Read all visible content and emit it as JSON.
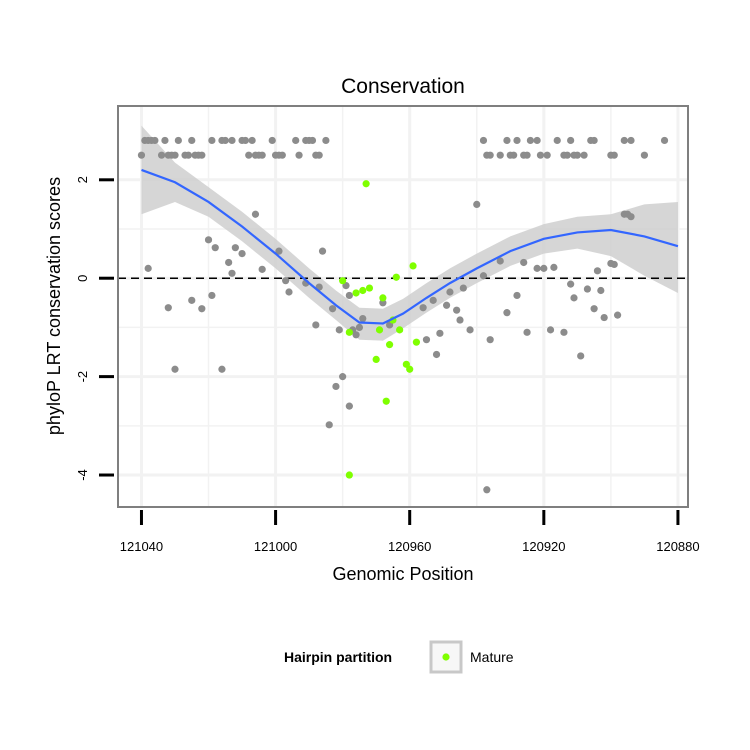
{
  "chart_data": {
    "type": "scatter",
    "title": "Conservation",
    "xlabel": "Genomic Position",
    "ylabel": "phyloP LRT conservation scores",
    "x_reversed": true,
    "xlim": [
      121047,
      120877
    ],
    "ylim": [
      -4.65,
      3.5
    ],
    "x_ticks": [
      121040,
      121000,
      120960,
      120920,
      120880
    ],
    "y_ticks": [
      -4,
      -2,
      0,
      2
    ],
    "reference_line": {
      "y": 0,
      "style": "dashed",
      "color": "#000000"
    },
    "grid": true,
    "legend": {
      "title": "Hairpin partition",
      "position": "bottom",
      "entries": [
        {
          "label": "Mature",
          "color": "#7fff00"
        }
      ]
    },
    "colors": {
      "default_points": "#8c8c8c",
      "mature_points": "#7fff00",
      "smooth_line": "#3366ff",
      "confidence_band": "#cccccc",
      "grid": "#f2f2f2",
      "panel_border": "#7f7f7f"
    },
    "series": [
      {
        "name": "",
        "color": "#8c8c8c",
        "points": [
          [
            121040,
            2.5
          ],
          [
            121039,
            2.8
          ],
          [
            121038,
            2.8
          ],
          [
            121037,
            2.8
          ],
          [
            121036,
            2.8
          ],
          [
            121034,
            2.5
          ],
          [
            121033,
            2.8
          ],
          [
            121032,
            2.5
          ],
          [
            121031,
            2.5
          ],
          [
            121030,
            2.5
          ],
          [
            121029,
            2.8
          ],
          [
            121027,
            2.5
          ],
          [
            121026,
            2.5
          ],
          [
            121025,
            2.8
          ],
          [
            121024,
            2.5
          ],
          [
            121023,
            2.5
          ],
          [
            121022,
            2.5
          ],
          [
            121019,
            2.8
          ],
          [
            121016,
            2.8
          ],
          [
            121015,
            2.8
          ],
          [
            121013,
            2.8
          ],
          [
            121010,
            2.8
          ],
          [
            121009,
            2.8
          ],
          [
            121008,
            2.5
          ],
          [
            121007,
            2.8
          ],
          [
            121006,
            2.5
          ],
          [
            121005,
            2.5
          ],
          [
            121004,
            2.5
          ],
          [
            121001,
            2.8
          ],
          [
            121000,
            2.5
          ],
          [
            120999,
            2.5
          ],
          [
            120998,
            2.5
          ],
          [
            120994,
            2.8
          ],
          [
            120993,
            2.5
          ],
          [
            120991,
            2.8
          ],
          [
            120990,
            2.8
          ],
          [
            120989,
            2.8
          ],
          [
            120988,
            2.5
          ],
          [
            120987,
            2.5
          ],
          [
            120985,
            2.8
          ],
          [
            121038,
            0.2
          ],
          [
            121032,
            -0.6
          ],
          [
            121030,
            -1.85
          ],
          [
            121025,
            -0.45
          ],
          [
            121022,
            -0.62
          ],
          [
            121020,
            0.78
          ],
          [
            121019,
            -0.35
          ],
          [
            121018,
            0.62
          ],
          [
            121016,
            -1.85
          ],
          [
            121014,
            0.32
          ],
          [
            121013,
            0.1
          ],
          [
            121012,
            0.62
          ],
          [
            121010,
            0.5
          ],
          [
            121006,
            1.3
          ],
          [
            121004,
            0.18
          ],
          [
            120999,
            0.55
          ],
          [
            120997,
            -0.05
          ],
          [
            120996,
            -0.28
          ],
          [
            120991,
            -0.1
          ],
          [
            120988,
            -0.95
          ],
          [
            120987,
            -0.18
          ],
          [
            120986,
            0.55
          ],
          [
            120984,
            -2.98
          ],
          [
            120983,
            -0.62
          ],
          [
            120982,
            -2.2
          ],
          [
            120981,
            -1.05
          ],
          [
            120980,
            -2.0
          ],
          [
            120979,
            -0.15
          ],
          [
            120978,
            -0.35
          ],
          [
            120978,
            -2.6
          ],
          [
            120977,
            -1.05
          ],
          [
            120976,
            -1.15
          ],
          [
            120975,
            -1.0
          ],
          [
            120974,
            -0.82
          ],
          [
            120968,
            -0.5
          ],
          [
            120966,
            -0.95
          ],
          [
            120956,
            -0.6
          ],
          [
            120955,
            -1.25
          ],
          [
            120953,
            -0.45
          ],
          [
            120952,
            -1.55
          ],
          [
            120951,
            -1.12
          ],
          [
            120949,
            -0.55
          ],
          [
            120948,
            -0.28
          ],
          [
            120946,
            -0.65
          ],
          [
            120945,
            -0.85
          ],
          [
            120944,
            -0.2
          ],
          [
            120942,
            -1.05
          ],
          [
            120940,
            1.5
          ],
          [
            120938,
            0.05
          ],
          [
            120937,
            -4.3
          ],
          [
            120936,
            -1.25
          ],
          [
            120933,
            0.35
          ],
          [
            120931,
            -0.7
          ],
          [
            120928,
            -0.35
          ],
          [
            120926,
            0.32
          ],
          [
            120925,
            -1.1
          ],
          [
            120922,
            0.2
          ],
          [
            120920,
            0.2
          ],
          [
            120918,
            -1.05
          ],
          [
            120917,
            0.22
          ],
          [
            120914,
            -1.1
          ],
          [
            120912,
            -0.12
          ],
          [
            120911,
            -0.4
          ],
          [
            120909,
            -1.58
          ],
          [
            120907,
            -0.22
          ],
          [
            120905,
            -0.62
          ],
          [
            120904,
            0.15
          ],
          [
            120903,
            -0.25
          ],
          [
            120902,
            -0.8
          ],
          [
            120900,
            0.3
          ],
          [
            120899,
            0.28
          ],
          [
            120898,
            -0.75
          ],
          [
            120896,
            1.3
          ],
          [
            120895,
            1.3
          ],
          [
            120894,
            1.25
          ],
          [
            120938,
            2.8
          ],
          [
            120937,
            2.5
          ],
          [
            120936,
            2.5
          ],
          [
            120933,
            2.5
          ],
          [
            120931,
            2.8
          ],
          [
            120930,
            2.5
          ],
          [
            120929,
            2.5
          ],
          [
            120928,
            2.8
          ],
          [
            120926,
            2.5
          ],
          [
            120925,
            2.5
          ],
          [
            120924,
            2.8
          ],
          [
            120922,
            2.8
          ],
          [
            120921,
            2.5
          ],
          [
            120919,
            2.5
          ],
          [
            120916,
            2.8
          ],
          [
            120914,
            2.5
          ],
          [
            120913,
            2.5
          ],
          [
            120912,
            2.8
          ],
          [
            120911,
            2.5
          ],
          [
            120910,
            2.5
          ],
          [
            120908,
            2.5
          ],
          [
            120906,
            2.8
          ],
          [
            120905,
            2.8
          ],
          [
            120900,
            2.5
          ],
          [
            120899,
            2.5
          ],
          [
            120896,
            2.8
          ],
          [
            120894,
            2.8
          ],
          [
            120890,
            2.5
          ],
          [
            120884,
            2.8
          ]
        ]
      },
      {
        "name": "Mature",
        "color": "#7fff00",
        "points": [
          [
            120980,
            -0.05
          ],
          [
            120978,
            -1.1
          ],
          [
            120976,
            -0.3
          ],
          [
            120974,
            -0.25
          ],
          [
            120973,
            1.92
          ],
          [
            120972,
            -0.2
          ],
          [
            120970,
            -1.65
          ],
          [
            120969,
            -1.05
          ],
          [
            120968,
            -0.4
          ],
          [
            120967,
            -2.5
          ],
          [
            120966,
            -1.35
          ],
          [
            120965,
            -0.85
          ],
          [
            120964,
            0.02
          ],
          [
            120963,
            -1.05
          ],
          [
            120961,
            -1.75
          ],
          [
            120960,
            -1.85
          ],
          [
            120959,
            0.25
          ],
          [
            120958,
            -1.3
          ],
          [
            120978,
            -4.0
          ]
        ]
      },
      {
        "name": "",
        "type": "smooth",
        "color": "#3366ff",
        "x": [
          121040,
          121030,
          121020,
          121010,
          121000,
          120990,
          120982,
          120975,
          120968,
          120962,
          120955,
          120948,
          120940,
          120930,
          120920,
          120910,
          120900,
          120890,
          120880
        ],
        "y": [
          2.2,
          1.95,
          1.55,
          1.05,
          0.5,
          -0.1,
          -0.55,
          -0.9,
          -0.92,
          -0.72,
          -0.4,
          -0.1,
          0.2,
          0.55,
          0.8,
          0.93,
          0.98,
          0.85,
          0.65
        ],
        "band_upper": [
          3.1,
          2.35,
          1.85,
          1.35,
          0.8,
          0.2,
          -0.25,
          -0.6,
          -0.62,
          -0.42,
          -0.1,
          0.2,
          0.5,
          0.85,
          1.1,
          1.25,
          1.3,
          1.5,
          1.55
        ],
        "band_lower": [
          1.3,
          1.55,
          1.25,
          0.75,
          0.2,
          -0.4,
          -0.85,
          -1.25,
          -1.27,
          -1.02,
          -0.7,
          -0.4,
          -0.1,
          0.25,
          0.5,
          0.6,
          0.45,
          0.05,
          -0.3
        ]
      }
    ]
  }
}
